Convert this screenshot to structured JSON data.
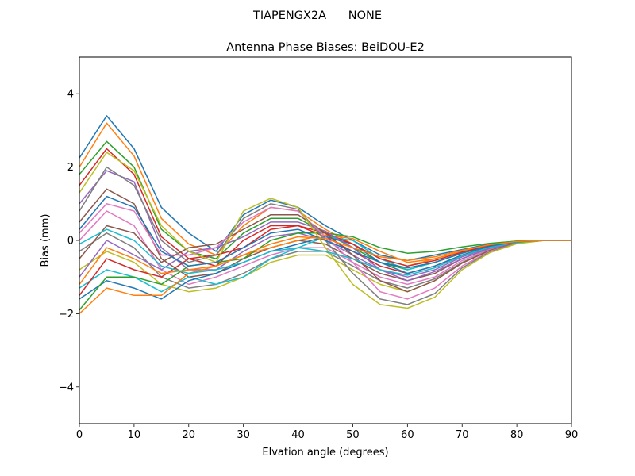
{
  "figure": {
    "suptitle": "TIAPENGX2A      NONE"
  },
  "chart_data": {
    "type": "line",
    "title": "Antenna Phase Biases: BeiDOU-E2",
    "xlabel": "Elvation angle (degrees)",
    "ylabel": "Bias (mm)",
    "xlim": [
      0,
      90
    ],
    "ylim": [
      -5,
      5
    ],
    "xticks": [
      0,
      10,
      20,
      30,
      40,
      50,
      60,
      70,
      80,
      90
    ],
    "yticks": [
      -4,
      -2,
      0,
      2,
      4
    ],
    "ytick_labels": [
      "−4",
      "−2",
      "0",
      "2",
      "4"
    ],
    "grid": false,
    "legend": "none",
    "x": [
      0,
      5,
      10,
      15,
      20,
      25,
      30,
      35,
      40,
      45,
      50,
      55,
      60,
      65,
      70,
      75,
      80,
      85,
      90
    ],
    "series": [
      {
        "values": [
          2.25,
          3.4,
          2.5,
          0.9,
          0.2,
          -0.3,
          0.7,
          1.1,
          0.9,
          0.4,
          0.0,
          -0.4,
          -0.55,
          -0.4,
          -0.25,
          -0.1,
          -0.02,
          0.0,
          0.0
        ]
      },
      {
        "values": [
          2.0,
          3.2,
          2.3,
          0.6,
          -0.1,
          -0.4,
          0.4,
          0.9,
          0.8,
          0.3,
          -0.1,
          -0.5,
          -0.7,
          -0.5,
          -0.3,
          -0.12,
          -0.03,
          0.0,
          0.0
        ]
      },
      {
        "values": [
          1.8,
          2.7,
          2.0,
          0.3,
          -0.3,
          -0.5,
          0.2,
          0.6,
          0.6,
          0.2,
          -0.2,
          -0.6,
          -0.8,
          -0.6,
          -0.35,
          -0.15,
          -0.04,
          0.0,
          0.0
        ]
      },
      {
        "values": [
          1.5,
          2.5,
          1.8,
          0.1,
          -0.5,
          -0.7,
          0.0,
          0.4,
          0.4,
          0.1,
          -0.3,
          -0.7,
          -0.9,
          -0.7,
          -0.4,
          -0.18,
          -0.05,
          0.0,
          0.0
        ]
      },
      {
        "values": [
          1.0,
          1.9,
          1.6,
          -0.2,
          -0.8,
          -0.8,
          -0.3,
          0.1,
          0.2,
          0.0,
          -0.4,
          -0.8,
          -1.0,
          -0.8,
          -0.45,
          -0.2,
          -0.05,
          0.0,
          0.0
        ]
      },
      {
        "values": [
          0.5,
          1.4,
          1.0,
          -0.5,
          -1.0,
          -0.9,
          -0.5,
          -0.2,
          0.0,
          -0.1,
          -0.5,
          -0.9,
          -1.1,
          -0.9,
          -0.5,
          -0.22,
          -0.06,
          0.0,
          0.0
        ]
      },
      {
        "values": [
          0.0,
          0.8,
          0.4,
          -0.8,
          -1.2,
          -1.0,
          -0.7,
          -0.4,
          -0.2,
          -0.2,
          -0.6,
          -1.0,
          -1.2,
          -1.0,
          -0.55,
          -0.25,
          -0.06,
          0.0,
          0.0
        ]
      },
      {
        "values": [
          -0.3,
          0.2,
          -0.2,
          -1.0,
          -1.3,
          -1.2,
          -0.9,
          -0.5,
          -0.3,
          -0.3,
          -0.7,
          -1.1,
          -1.3,
          -1.05,
          -0.6,
          -0.27,
          -0.07,
          0.0,
          0.0
        ]
      },
      {
        "values": [
          -0.8,
          -0.3,
          -0.6,
          -1.2,
          -1.4,
          -1.3,
          -1.0,
          -0.6,
          -0.4,
          -0.4,
          -0.8,
          -1.2,
          -1.4,
          -1.1,
          -0.62,
          -0.28,
          -0.07,
          0.0,
          0.0
        ]
      },
      {
        "values": [
          -1.3,
          -0.8,
          -1.0,
          -1.4,
          -1.0,
          -1.2,
          -1.0,
          -0.5,
          -0.2,
          0.1,
          0.0,
          -0.5,
          -0.8,
          -0.6,
          -0.35,
          -0.15,
          -0.04,
          0.0,
          0.0
        ]
      },
      {
        "values": [
          -1.6,
          -1.1,
          -1.3,
          -1.6,
          -1.1,
          -0.9,
          -0.6,
          -0.3,
          -0.1,
          0.1,
          -0.1,
          -0.6,
          -0.9,
          -0.7,
          -0.4,
          -0.18,
          -0.05,
          0.0,
          0.0
        ]
      },
      {
        "values": [
          -2.0,
          -1.3,
          -1.5,
          -1.5,
          -0.9,
          -0.7,
          -0.4,
          -0.2,
          0.0,
          0.15,
          0.05,
          -0.3,
          -0.6,
          -0.5,
          -0.3,
          -0.12,
          -0.03,
          0.0,
          0.0
        ]
      },
      {
        "values": [
          -1.9,
          -1.0,
          -1.0,
          -1.2,
          -0.7,
          -0.6,
          -0.5,
          0.0,
          0.2,
          0.2,
          0.1,
          -0.2,
          -0.35,
          -0.3,
          -0.18,
          -0.08,
          -0.02,
          0.0,
          0.0
        ]
      },
      {
        "values": [
          -1.5,
          -0.5,
          -0.8,
          -1.0,
          -0.5,
          -0.4,
          -0.2,
          0.3,
          0.4,
          0.2,
          -0.1,
          -0.5,
          -0.7,
          -0.55,
          -0.32,
          -0.14,
          -0.04,
          0.0,
          0.0
        ]
      },
      {
        "values": [
          -1.0,
          0.0,
          -0.4,
          -0.8,
          -0.3,
          -0.2,
          0.1,
          0.5,
          0.5,
          0.25,
          -0.2,
          -0.8,
          -1.1,
          -0.85,
          -0.5,
          -0.22,
          -0.06,
          0.0,
          0.0
        ]
      },
      {
        "values": [
          -0.5,
          0.4,
          0.2,
          -0.6,
          -0.2,
          -0.1,
          0.3,
          0.7,
          0.7,
          0.2,
          -0.4,
          -1.1,
          -1.4,
          -1.1,
          -0.62,
          -0.28,
          -0.07,
          0.0,
          0.0
        ]
      },
      {
        "values": [
          0.2,
          1.0,
          0.8,
          -0.4,
          -0.4,
          -0.2,
          0.5,
          0.9,
          0.8,
          0.1,
          -0.6,
          -1.4,
          -1.6,
          -1.3,
          -0.7,
          -0.3,
          -0.08,
          0.0,
          0.0
        ]
      },
      {
        "values": [
          0.8,
          2.0,
          1.5,
          0.0,
          -0.6,
          -0.4,
          0.6,
          1.0,
          0.85,
          0.0,
          -0.9,
          -1.6,
          -1.75,
          -1.45,
          -0.75,
          -0.32,
          -0.08,
          0.0,
          0.0
        ]
      },
      {
        "values": [
          1.3,
          2.4,
          1.9,
          0.4,
          -0.3,
          -0.6,
          0.8,
          1.15,
          0.9,
          -0.2,
          -1.2,
          -1.75,
          -1.85,
          -1.55,
          -0.8,
          -0.34,
          -0.09,
          0.0,
          0.0
        ]
      },
      {
        "values": [
          -0.1,
          0.3,
          0.0,
          -0.7,
          -0.9,
          -0.8,
          -0.6,
          -0.3,
          -0.2,
          -0.3,
          -0.5,
          -0.8,
          -0.95,
          -0.75,
          -0.42,
          -0.19,
          -0.05,
          0.0,
          0.0
        ]
      },
      {
        "values": [
          0.3,
          1.2,
          0.9,
          -0.3,
          -0.7,
          -0.6,
          -0.2,
          0.2,
          0.3,
          0.0,
          -0.3,
          -0.6,
          -0.75,
          -0.6,
          -0.35,
          -0.16,
          -0.04,
          0.0,
          0.0
        ]
      },
      {
        "values": [
          -1.2,
          -0.2,
          -0.5,
          -0.9,
          -0.8,
          -0.7,
          -0.4,
          -0.1,
          0.1,
          0.05,
          -0.2,
          -0.45,
          -0.55,
          -0.45,
          -0.27,
          -0.12,
          -0.03,
          0.0,
          0.0
        ]
      }
    ]
  },
  "colors": [
    "#1f77b4",
    "#ff7f0e",
    "#2ca02c",
    "#d62728",
    "#9467bd",
    "#8c564b",
    "#e377c2",
    "#7f7f7f",
    "#bcbd22",
    "#17becf"
  ]
}
